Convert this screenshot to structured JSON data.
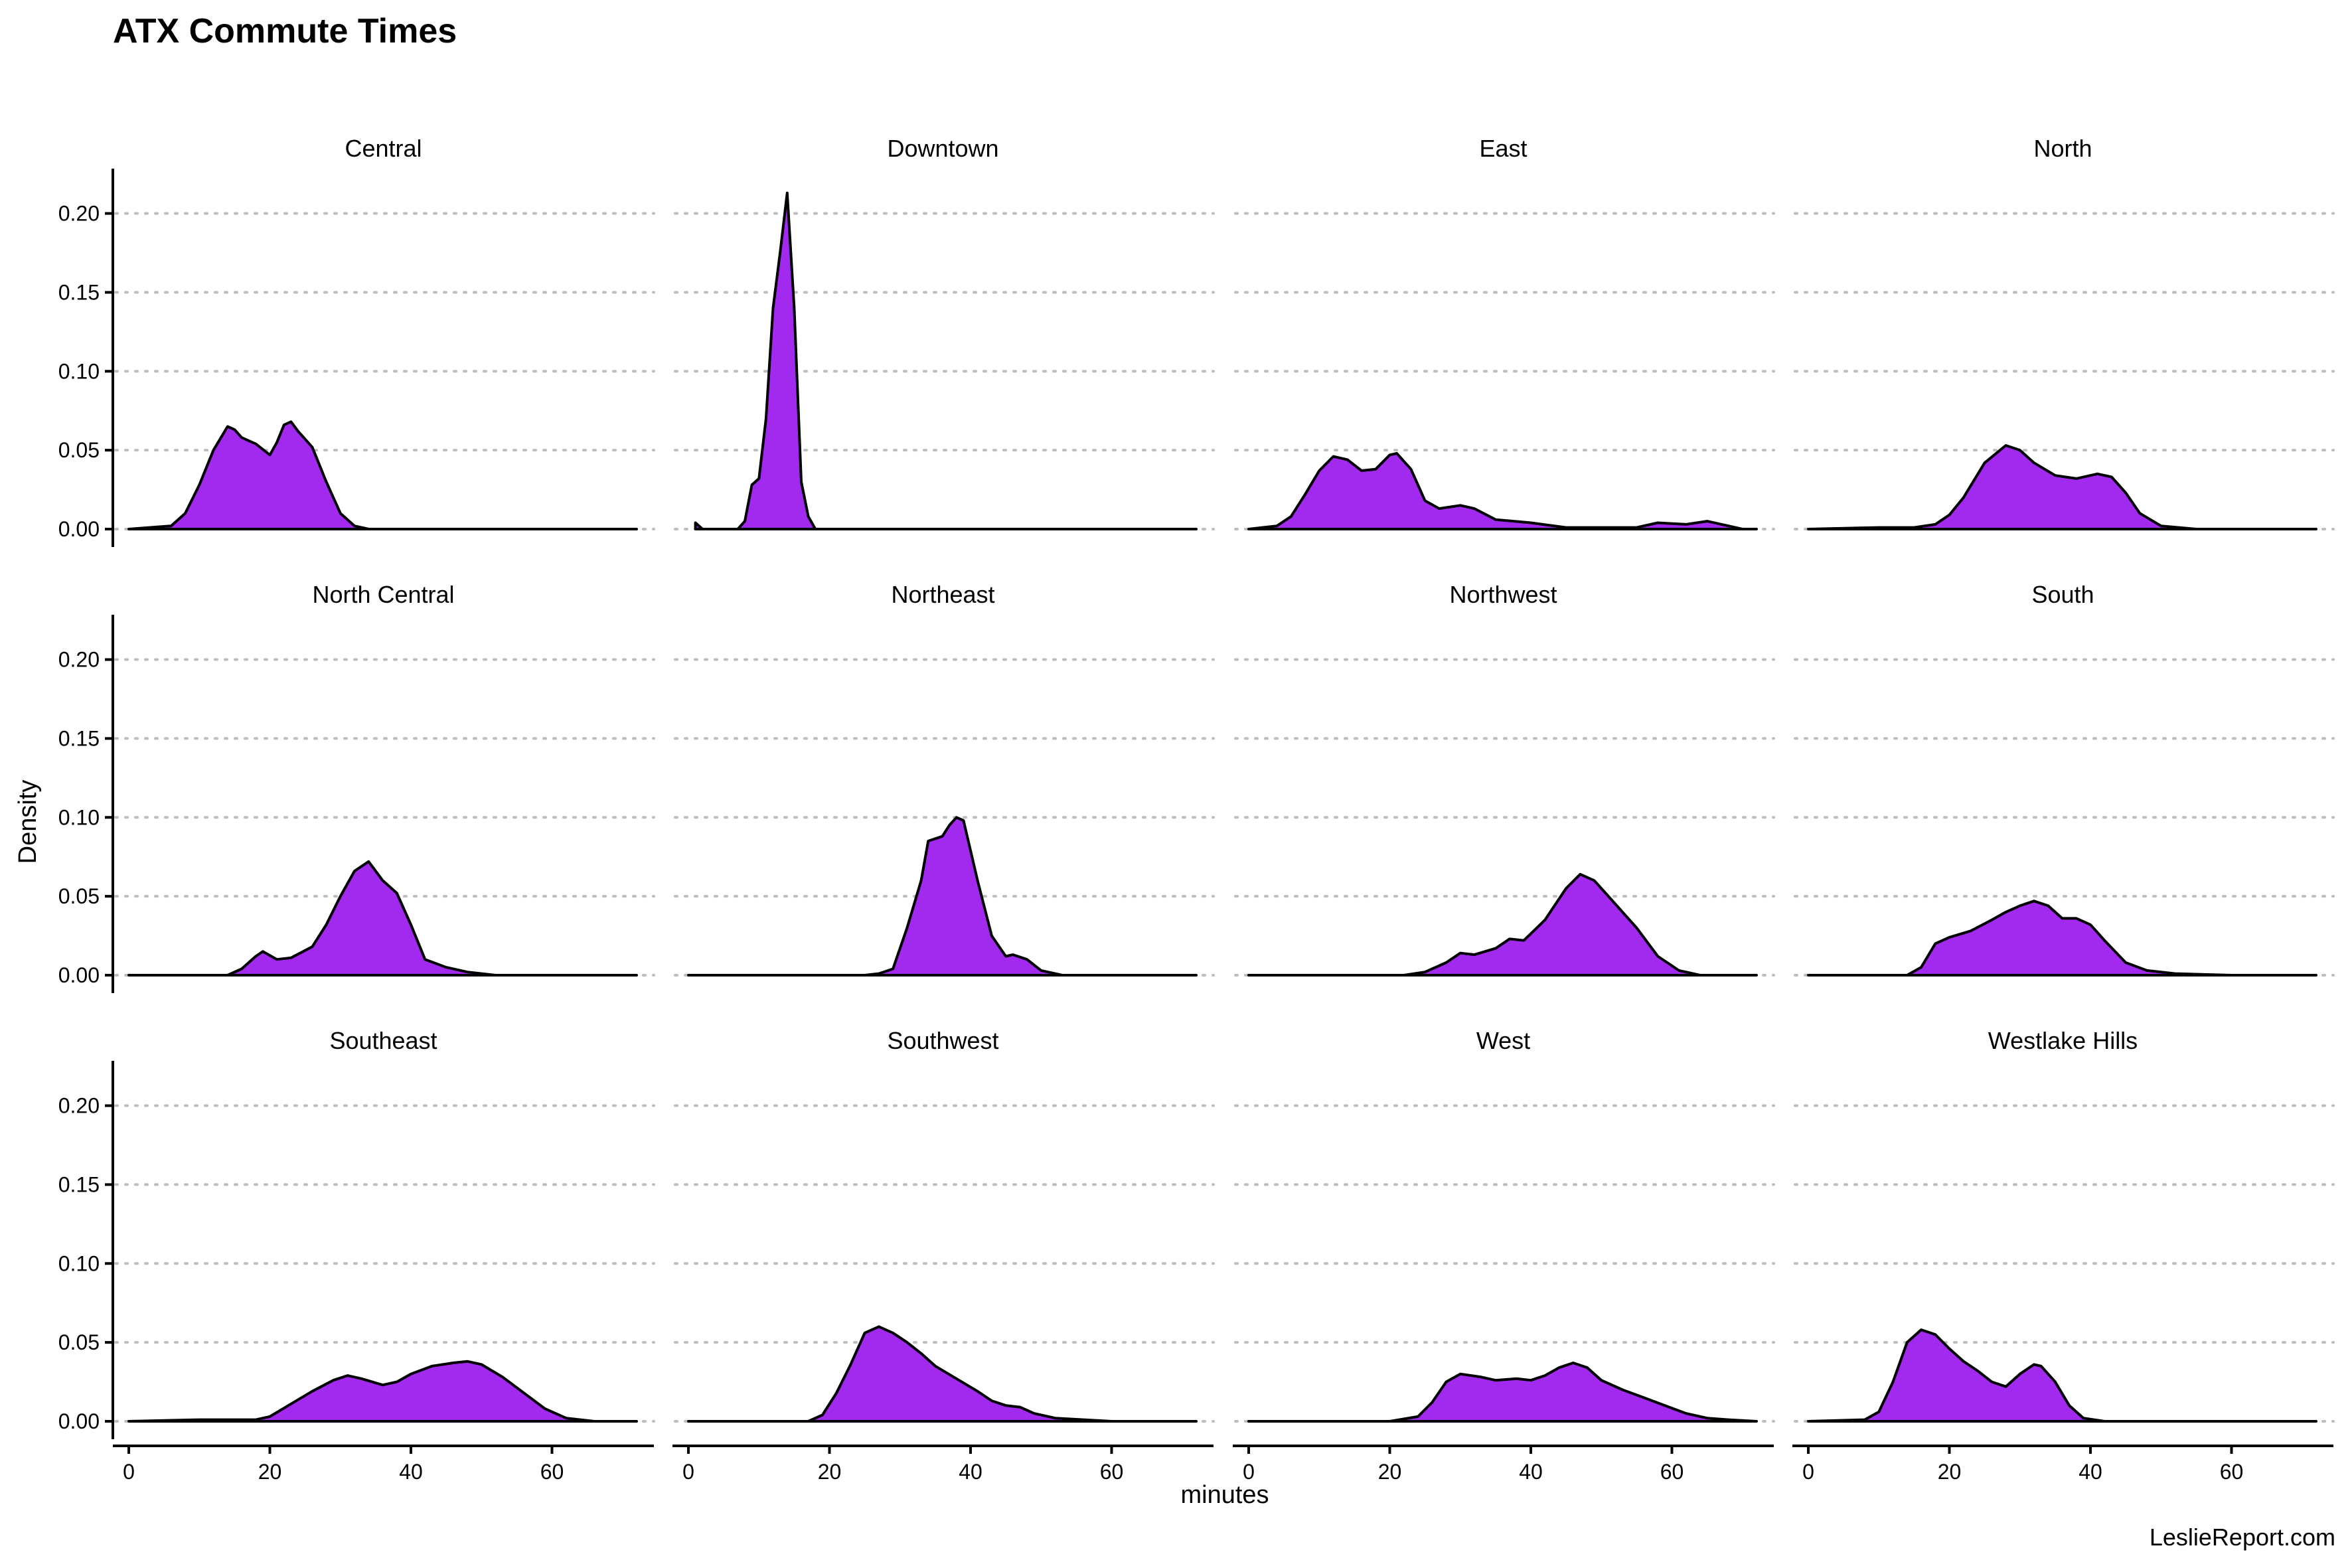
{
  "chart_data": {
    "type": "area",
    "title": "ATX Commute Times",
    "xlabel": "minutes",
    "ylabel": "Density",
    "caption": "LeslieReport.com",
    "xlim": [
      0,
      72
    ],
    "ylim": [
      0,
      0.22
    ],
    "x_ticks": [
      0,
      20,
      40,
      60
    ],
    "y_ticks": [
      0.0,
      0.05,
      0.1,
      0.15,
      0.2
    ],
    "grid": "horizontal-dotted",
    "fill_color": "#a229ee",
    "line_color": "#000000",
    "facets": [
      {
        "name": "Central",
        "points": [
          [
            0,
            0
          ],
          [
            6,
            0.002
          ],
          [
            8,
            0.01
          ],
          [
            10,
            0.028
          ],
          [
            12,
            0.05
          ],
          [
            14,
            0.065
          ],
          [
            15,
            0.063
          ],
          [
            16,
            0.058
          ],
          [
            18,
            0.054
          ],
          [
            20,
            0.047
          ],
          [
            21,
            0.055
          ],
          [
            22,
            0.066
          ],
          [
            23,
            0.068
          ],
          [
            24,
            0.062
          ],
          [
            26,
            0.052
          ],
          [
            28,
            0.03
          ],
          [
            30,
            0.01
          ],
          [
            32,
            0.002
          ],
          [
            34,
            0
          ],
          [
            72,
            0
          ]
        ]
      },
      {
        "name": "Downtown",
        "points": [
          [
            1,
            0.004
          ],
          [
            2,
            0
          ],
          [
            7,
            0
          ],
          [
            8,
            0.005
          ],
          [
            9,
            0.028
          ],
          [
            10,
            0.032
          ],
          [
            11,
            0.07
          ],
          [
            12,
            0.14
          ],
          [
            13,
            0.175
          ],
          [
            14,
            0.213
          ],
          [
            15,
            0.14
          ],
          [
            16,
            0.03
          ],
          [
            17,
            0.008
          ],
          [
            18,
            0
          ],
          [
            72,
            0
          ]
        ]
      },
      {
        "name": "East",
        "points": [
          [
            0,
            0
          ],
          [
            4,
            0.002
          ],
          [
            6,
            0.008
          ],
          [
            8,
            0.022
          ],
          [
            10,
            0.037
          ],
          [
            12,
            0.046
          ],
          [
            14,
            0.044
          ],
          [
            16,
            0.037
          ],
          [
            18,
            0.038
          ],
          [
            20,
            0.047
          ],
          [
            21,
            0.048
          ],
          [
            23,
            0.038
          ],
          [
            25,
            0.018
          ],
          [
            27,
            0.013
          ],
          [
            30,
            0.015
          ],
          [
            32,
            0.013
          ],
          [
            35,
            0.006
          ],
          [
            40,
            0.004
          ],
          [
            45,
            0.001
          ],
          [
            50,
            0.001
          ],
          [
            55,
            0.001
          ],
          [
            58,
            0.004
          ],
          [
            62,
            0.003
          ],
          [
            65,
            0.005
          ],
          [
            68,
            0.002
          ],
          [
            70,
            0
          ],
          [
            72,
            0
          ]
        ]
      },
      {
        "name": "North",
        "points": [
          [
            0,
            0
          ],
          [
            10,
            0.001
          ],
          [
            15,
            0.001
          ],
          [
            18,
            0.003
          ],
          [
            20,
            0.009
          ],
          [
            22,
            0.02
          ],
          [
            25,
            0.042
          ],
          [
            28,
            0.053
          ],
          [
            30,
            0.05
          ],
          [
            32,
            0.042
          ],
          [
            35,
            0.034
          ],
          [
            38,
            0.032
          ],
          [
            41,
            0.035
          ],
          [
            43,
            0.033
          ],
          [
            45,
            0.023
          ],
          [
            47,
            0.01
          ],
          [
            50,
            0.002
          ],
          [
            55,
            0
          ],
          [
            72,
            0
          ]
        ]
      },
      {
        "name": "North Central",
        "points": [
          [
            0,
            0
          ],
          [
            14,
            0
          ],
          [
            16,
            0.004
          ],
          [
            18,
            0.012
          ],
          [
            19,
            0.015
          ],
          [
            21,
            0.01
          ],
          [
            23,
            0.011
          ],
          [
            26,
            0.018
          ],
          [
            28,
            0.032
          ],
          [
            30,
            0.05
          ],
          [
            32,
            0.066
          ],
          [
            34,
            0.072
          ],
          [
            36,
            0.06
          ],
          [
            38,
            0.052
          ],
          [
            40,
            0.032
          ],
          [
            42,
            0.01
          ],
          [
            45,
            0.005
          ],
          [
            48,
            0.002
          ],
          [
            52,
            0
          ],
          [
            72,
            0
          ]
        ]
      },
      {
        "name": "Northeast",
        "points": [
          [
            0,
            0
          ],
          [
            25,
            0
          ],
          [
            27,
            0.001
          ],
          [
            29,
            0.004
          ],
          [
            31,
            0.03
          ],
          [
            33,
            0.06
          ],
          [
            34,
            0.085
          ],
          [
            36,
            0.088
          ],
          [
            37,
            0.095
          ],
          [
            38,
            0.1
          ],
          [
            39,
            0.098
          ],
          [
            41,
            0.06
          ],
          [
            43,
            0.025
          ],
          [
            45,
            0.012
          ],
          [
            46,
            0.013
          ],
          [
            48,
            0.01
          ],
          [
            50,
            0.003
          ],
          [
            53,
            0
          ],
          [
            72,
            0
          ]
        ]
      },
      {
        "name": "Northwest",
        "points": [
          [
            0,
            0
          ],
          [
            22,
            0
          ],
          [
            25,
            0.002
          ],
          [
            28,
            0.008
          ],
          [
            30,
            0.014
          ],
          [
            32,
            0.013
          ],
          [
            35,
            0.017
          ],
          [
            37,
            0.023
          ],
          [
            39,
            0.022
          ],
          [
            42,
            0.035
          ],
          [
            45,
            0.055
          ],
          [
            47,
            0.064
          ],
          [
            49,
            0.06
          ],
          [
            52,
            0.045
          ],
          [
            55,
            0.03
          ],
          [
            58,
            0.012
          ],
          [
            61,
            0.003
          ],
          [
            64,
            0
          ],
          [
            72,
            0
          ]
        ]
      },
      {
        "name": "South",
        "points": [
          [
            0,
            0
          ],
          [
            14,
            0
          ],
          [
            16,
            0.005
          ],
          [
            18,
            0.02
          ],
          [
            20,
            0.024
          ],
          [
            23,
            0.028
          ],
          [
            26,
            0.035
          ],
          [
            28,
            0.04
          ],
          [
            30,
            0.044
          ],
          [
            32,
            0.047
          ],
          [
            34,
            0.044
          ],
          [
            36,
            0.036
          ],
          [
            38,
            0.036
          ],
          [
            40,
            0.032
          ],
          [
            42,
            0.022
          ],
          [
            45,
            0.008
          ],
          [
            48,
            0.003
          ],
          [
            52,
            0.001
          ],
          [
            60,
            0
          ],
          [
            72,
            0
          ]
        ]
      },
      {
        "name": "Southeast",
        "points": [
          [
            0,
            0
          ],
          [
            10,
            0.001
          ],
          [
            18,
            0.001
          ],
          [
            20,
            0.003
          ],
          [
            23,
            0.011
          ],
          [
            26,
            0.019
          ],
          [
            29,
            0.026
          ],
          [
            31,
            0.029
          ],
          [
            33,
            0.027
          ],
          [
            36,
            0.023
          ],
          [
            38,
            0.025
          ],
          [
            40,
            0.03
          ],
          [
            43,
            0.035
          ],
          [
            46,
            0.037
          ],
          [
            48,
            0.038
          ],
          [
            50,
            0.036
          ],
          [
            53,
            0.028
          ],
          [
            56,
            0.018
          ],
          [
            59,
            0.008
          ],
          [
            62,
            0.002
          ],
          [
            66,
            0
          ],
          [
            72,
            0
          ]
        ]
      },
      {
        "name": "Southwest",
        "points": [
          [
            0,
            0
          ],
          [
            17,
            0
          ],
          [
            19,
            0.004
          ],
          [
            21,
            0.018
          ],
          [
            23,
            0.036
          ],
          [
            25,
            0.056
          ],
          [
            27,
            0.06
          ],
          [
            29,
            0.056
          ],
          [
            31,
            0.05
          ],
          [
            33,
            0.043
          ],
          [
            35,
            0.035
          ],
          [
            38,
            0.027
          ],
          [
            41,
            0.019
          ],
          [
            43,
            0.013
          ],
          [
            45,
            0.01
          ],
          [
            47,
            0.009
          ],
          [
            49,
            0.005
          ],
          [
            52,
            0.002
          ],
          [
            56,
            0.001
          ],
          [
            60,
            0
          ],
          [
            72,
            0
          ]
        ]
      },
      {
        "name": "West",
        "points": [
          [
            0,
            0
          ],
          [
            20,
            0
          ],
          [
            24,
            0.003
          ],
          [
            26,
            0.012
          ],
          [
            28,
            0.025
          ],
          [
            30,
            0.03
          ],
          [
            33,
            0.028
          ],
          [
            35,
            0.026
          ],
          [
            38,
            0.027
          ],
          [
            40,
            0.026
          ],
          [
            42,
            0.029
          ],
          [
            44,
            0.034
          ],
          [
            46,
            0.037
          ],
          [
            48,
            0.034
          ],
          [
            50,
            0.026
          ],
          [
            53,
            0.02
          ],
          [
            56,
            0.015
          ],
          [
            59,
            0.01
          ],
          [
            62,
            0.005
          ],
          [
            65,
            0.002
          ],
          [
            68,
            0.001
          ],
          [
            72,
            0
          ]
        ]
      },
      {
        "name": "Westlake Hills",
        "points": [
          [
            0,
            0
          ],
          [
            8,
            0.001
          ],
          [
            10,
            0.006
          ],
          [
            12,
            0.025
          ],
          [
            14,
            0.05
          ],
          [
            16,
            0.058
          ],
          [
            18,
            0.055
          ],
          [
            20,
            0.046
          ],
          [
            22,
            0.038
          ],
          [
            24,
            0.032
          ],
          [
            26,
            0.025
          ],
          [
            28,
            0.022
          ],
          [
            30,
            0.03
          ],
          [
            32,
            0.036
          ],
          [
            33,
            0.035
          ],
          [
            35,
            0.025
          ],
          [
            37,
            0.01
          ],
          [
            39,
            0.002
          ],
          [
            42,
            0
          ],
          [
            72,
            0
          ]
        ]
      }
    ]
  }
}
